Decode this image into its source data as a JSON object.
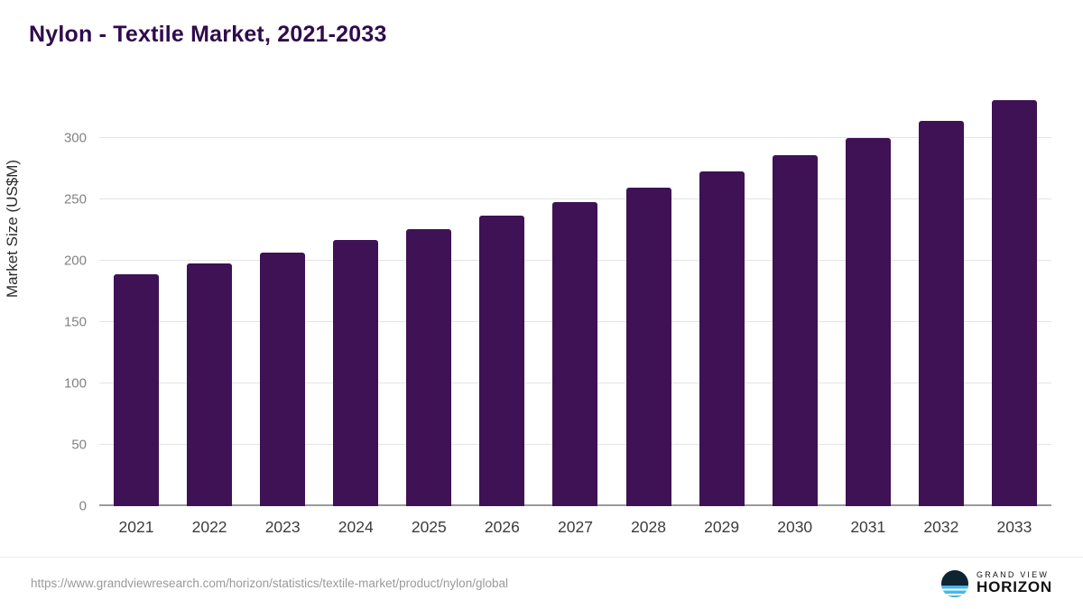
{
  "title": "Nylon - Textile Market, 2021-2033",
  "source": {
    "url": "https://www.grandviewresearch.com/horizon/statistics/textile-market/product/nylon/global"
  },
  "logo": {
    "line1": "GRAND VIEW",
    "line2": "HORIZON",
    "icon": "horizon-sun-over-water-icon"
  },
  "colors": {
    "bar": "#3f1155",
    "title_text": "#2f0b4c",
    "gridline": "#e4e4e4",
    "axis_line": "#9b9b9b",
    "tick_text": "#828282",
    "logo_wave_blue": "#45b8e8"
  },
  "chart_data": {
    "type": "bar",
    "title": "Nylon - Textile Market, 2021-2033",
    "xlabel": "",
    "ylabel": "Market Size (US$M)",
    "categories": [
      "2021",
      "2022",
      "2023",
      "2024",
      "2025",
      "2026",
      "2027",
      "2028",
      "2029",
      "2030",
      "2031",
      "2032",
      "2033"
    ],
    "values": [
      189,
      198,
      207,
      217,
      226,
      237,
      248,
      260,
      273,
      286,
      300,
      314,
      331
    ],
    "ylim": [
      0,
      340
    ],
    "yticks": [
      0,
      50,
      100,
      150,
      200,
      250,
      300
    ],
    "grid": "horizontal",
    "legend": "none",
    "bar_color": "#3f1155"
  }
}
